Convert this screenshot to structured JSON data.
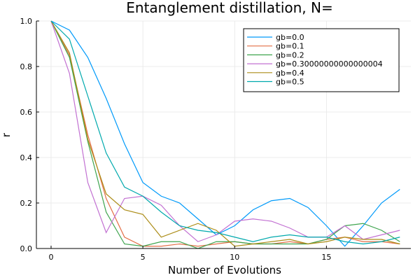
{
  "chart_data": {
    "type": "line",
    "title": "Entanglement distillation, N=",
    "xlabel": "Number of Evolutions",
    "ylabel": "r",
    "xlim": [
      -0.8,
      19.6
    ],
    "ylim": [
      0,
      1.0
    ],
    "x_ticks": [
      0,
      5,
      10,
      15
    ],
    "y_ticks": [
      0.0,
      0.2,
      0.4,
      0.6,
      0.8,
      1.0
    ],
    "grid": true,
    "legend_position": "top-right",
    "x": [
      0,
      1,
      2,
      3,
      4,
      5,
      6,
      7,
      8,
      9,
      10,
      11,
      12,
      13,
      14,
      15,
      16,
      17,
      18,
      19
    ],
    "series": [
      {
        "name": "gb=0.0",
        "color": "#009AFA",
        "values": [
          1.0,
          0.96,
          0.84,
          0.66,
          0.46,
          0.29,
          0.23,
          0.2,
          0.13,
          0.06,
          0.1,
          0.17,
          0.21,
          0.22,
          0.18,
          0.1,
          0.01,
          0.1,
          0.2,
          0.26
        ]
      },
      {
        "name": "gb=0.1",
        "color": "#E36F47",
        "values": [
          1.0,
          0.85,
          0.5,
          0.22,
          0.05,
          0.01,
          0.01,
          0.02,
          0.01,
          0.02,
          0.03,
          0.02,
          0.02,
          0.03,
          0.02,
          0.04,
          0.05,
          0.03,
          0.03,
          0.02
        ]
      },
      {
        "name": "gb=0.2",
        "color": "#3EA44E",
        "values": [
          1.0,
          0.84,
          0.47,
          0.16,
          0.02,
          0.01,
          0.03,
          0.03,
          0.0,
          0.03,
          0.03,
          0.02,
          0.02,
          0.02,
          0.02,
          0.04,
          0.1,
          0.11,
          0.08,
          0.03
        ]
      },
      {
        "name": "gb=0.30000000000000004",
        "color": "#C271D2",
        "values": [
          1.0,
          0.77,
          0.29,
          0.07,
          0.22,
          0.23,
          0.19,
          0.1,
          0.03,
          0.06,
          0.12,
          0.13,
          0.12,
          0.09,
          0.05,
          0.05,
          0.1,
          0.04,
          0.06,
          0.08
        ]
      },
      {
        "name": "gb=0.4",
        "color": "#AC8D18",
        "values": [
          1.0,
          0.86,
          0.48,
          0.24,
          0.17,
          0.15,
          0.05,
          0.08,
          0.11,
          0.08,
          0.01,
          0.02,
          0.03,
          0.04,
          0.02,
          0.03,
          0.05,
          0.04,
          0.04,
          0.02
        ]
      },
      {
        "name": "gb=0.5",
        "color": "#00A9AD",
        "values": [
          1.0,
          0.92,
          0.67,
          0.42,
          0.27,
          0.23,
          0.16,
          0.1,
          0.08,
          0.07,
          0.05,
          0.03,
          0.05,
          0.06,
          0.05,
          0.05,
          0.03,
          0.02,
          0.03,
          0.05
        ]
      }
    ]
  }
}
